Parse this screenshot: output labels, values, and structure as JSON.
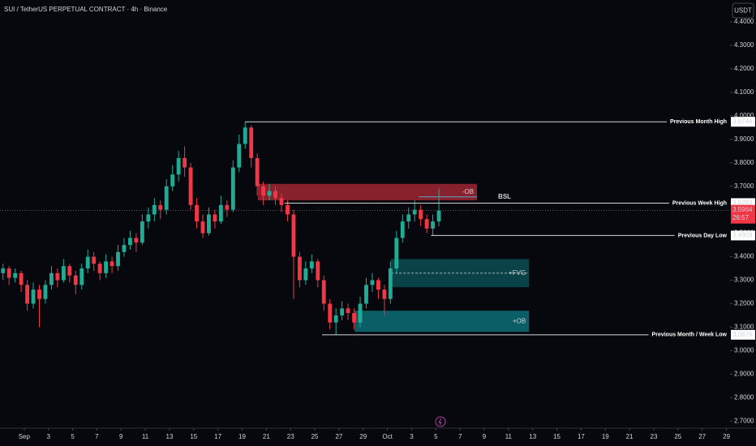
{
  "chart_data": {
    "type": "candlestick",
    "title": "SUI / TetherUS PERPETUAL CONTRACT · 4h · Binance",
    "currency": "USDT",
    "countdown": "26:57",
    "up_color": "#22ab94",
    "down_color": "#f23645",
    "xlim": [
      -2.0,
      58.3
    ],
    "xticks": [
      {
        "value": 0,
        "label": "Sep"
      },
      {
        "value": 2,
        "label": "3"
      },
      {
        "value": 4,
        "label": "5"
      },
      {
        "value": 6,
        "label": "7"
      },
      {
        "value": 8,
        "label": "9"
      },
      {
        "value": 10,
        "label": "11"
      },
      {
        "value": 12,
        "label": "13"
      },
      {
        "value": 14,
        "label": "15"
      },
      {
        "value": 16,
        "label": "17"
      },
      {
        "value": 18,
        "label": "19"
      },
      {
        "value": 20,
        "label": "21"
      },
      {
        "value": 22,
        "label": "23"
      },
      {
        "value": 24,
        "label": "25"
      },
      {
        "value": 26,
        "label": "27"
      },
      {
        "value": 28,
        "label": "29"
      },
      {
        "value": 30,
        "label": "Oct"
      },
      {
        "value": 32,
        "label": "3"
      },
      {
        "value": 34,
        "label": "5"
      },
      {
        "value": 36,
        "label": "7"
      },
      {
        "value": 38,
        "label": "9"
      },
      {
        "value": 40,
        "label": "11"
      },
      {
        "value": 42,
        "label": "13"
      },
      {
        "value": 44,
        "label": "15"
      },
      {
        "value": 46,
        "label": "17"
      },
      {
        "value": 48,
        "label": "19"
      },
      {
        "value": 50,
        "label": "21"
      },
      {
        "value": 52,
        "label": "23"
      },
      {
        "value": 54,
        "label": "25"
      },
      {
        "value": 56,
        "label": "27"
      },
      {
        "value": 58,
        "label": "29"
      }
    ],
    "ylim": [
      2.67,
      4.493
    ],
    "yticks": [
      {
        "value": 4.4,
        "label": "4.4000"
      },
      {
        "value": 4.3,
        "label": "4.3000"
      },
      {
        "value": 4.2,
        "label": "4.2000"
      },
      {
        "value": 4.1,
        "label": "4.1000"
      },
      {
        "value": 4.0,
        "label": "4.0000"
      },
      {
        "value": 3.9,
        "label": "3.9000"
      },
      {
        "value": 3.8,
        "label": "3.8000"
      },
      {
        "value": 3.7,
        "label": "3.7000"
      },
      {
        "value": 3.6,
        "label": "3.6000"
      },
      {
        "value": 3.5,
        "label": "3.5000"
      },
      {
        "value": 3.4,
        "label": "3.4000"
      },
      {
        "value": 3.3,
        "label": "3.3000"
      },
      {
        "value": 3.2,
        "label": "3.2000"
      },
      {
        "value": 3.1,
        "label": "3.1000"
      },
      {
        "value": 3.0,
        "label": "3.0000"
      },
      {
        "value": 2.9,
        "label": "2.9000"
      },
      {
        "value": 2.8,
        "label": "2.8000"
      },
      {
        "value": 2.7,
        "label": "2.7000"
      }
    ],
    "x": [
      -1.75,
      -1.25,
      -0.75,
      -0.25,
      0.25,
      0.75,
      1.25,
      1.75,
      2.25,
      2.75,
      3.25,
      3.75,
      4.25,
      4.75,
      5.25,
      5.75,
      6.25,
      6.75,
      7.25,
      7.75,
      8.25,
      8.75,
      9.25,
      9.75,
      10.25,
      10.75,
      11.25,
      11.75,
      12.25,
      12.75,
      13.25,
      13.75,
      14.25,
      14.75,
      15.25,
      15.75,
      16.25,
      16.75,
      17.25,
      17.75,
      18.25,
      18.75,
      19.25,
      19.75,
      20.25,
      20.75,
      21.25,
      21.75,
      22.25,
      22.75,
      23.25,
      23.75,
      24.25,
      24.75,
      25.25,
      25.75,
      26.25,
      26.75,
      27.25,
      27.75,
      28.25,
      28.75,
      29.25,
      29.75,
      30.25,
      30.75,
      31.25,
      31.75,
      32.25,
      32.75,
      33.25,
      33.75,
      34.25
    ],
    "open": [
      3.33,
      3.35,
      3.31,
      3.33,
      3.28,
      3.2,
      3.26,
      3.22,
      3.28,
      3.33,
      3.3,
      3.36,
      3.32,
      3.28,
      3.35,
      3.4,
      3.37,
      3.33,
      3.38,
      3.36,
      3.42,
      3.45,
      3.48,
      3.46,
      3.55,
      3.58,
      3.62,
      3.6,
      3.7,
      3.75,
      3.82,
      3.78,
      3.62,
      3.55,
      3.5,
      3.58,
      3.55,
      3.62,
      3.6,
      3.78,
      3.88,
      3.95,
      3.82,
      3.7,
      3.66,
      3.68,
      3.65,
      3.62,
      3.58,
      3.4,
      3.3,
      3.35,
      3.38,
      3.3,
      3.2,
      3.12,
      3.15,
      3.18,
      3.16,
      3.12,
      3.2,
      3.28,
      3.3,
      3.26,
      3.22,
      3.35,
      3.48,
      3.55,
      3.58,
      3.6,
      3.56,
      3.52,
      3.55
    ],
    "high": [
      3.37,
      3.36,
      3.35,
      3.34,
      3.3,
      3.29,
      3.28,
      3.3,
      3.36,
      3.35,
      3.39,
      3.37,
      3.34,
      3.37,
      3.43,
      3.42,
      3.38,
      3.41,
      3.4,
      3.45,
      3.48,
      3.51,
      3.5,
      3.58,
      3.61,
      3.65,
      3.64,
      3.73,
      3.79,
      3.85,
      3.87,
      3.8,
      3.65,
      3.58,
      3.61,
      3.6,
      3.66,
      3.64,
      3.81,
      3.92,
      3.9744,
      3.96,
      3.84,
      3.72,
      3.71,
      3.7,
      3.67,
      3.64,
      3.6,
      3.42,
      3.38,
      3.41,
      3.39,
      3.32,
      3.22,
      3.18,
      3.21,
      3.2,
      3.18,
      3.23,
      3.31,
      3.33,
      3.31,
      3.28,
      3.38,
      3.51,
      3.58,
      3.61,
      3.64,
      3.62,
      3.58,
      3.58,
      3.69
    ],
    "low": [
      3.3,
      3.28,
      3.29,
      3.25,
      3.17,
      3.18,
      3.1,
      3.2,
      3.26,
      3.27,
      3.29,
      3.29,
      3.24,
      3.26,
      3.33,
      3.34,
      3.3,
      3.31,
      3.33,
      3.34,
      3.4,
      3.43,
      3.42,
      3.45,
      3.52,
      3.55,
      3.56,
      3.58,
      3.68,
      3.72,
      3.74,
      3.6,
      3.52,
      3.48,
      3.49,
      3.52,
      3.54,
      3.57,
      3.59,
      3.76,
      3.86,
      3.78,
      3.66,
      3.62,
      3.64,
      3.62,
      3.59,
      3.55,
      3.22,
      3.27,
      3.28,
      3.33,
      3.27,
      3.17,
      3.09,
      3.0676,
      3.13,
      3.13,
      3.09,
      3.1,
      3.18,
      3.25,
      3.22,
      3.15,
      3.2,
      3.33,
      3.46,
      3.52,
      3.55,
      3.53,
      3.5,
      3.4903,
      3.53
    ],
    "close": [
      3.35,
      3.31,
      3.33,
      3.28,
      3.2,
      3.26,
      3.22,
      3.28,
      3.33,
      3.3,
      3.36,
      3.32,
      3.28,
      3.35,
      3.4,
      3.37,
      3.33,
      3.38,
      3.36,
      3.42,
      3.45,
      3.48,
      3.46,
      3.55,
      3.58,
      3.62,
      3.6,
      3.7,
      3.75,
      3.82,
      3.78,
      3.62,
      3.55,
      3.5,
      3.58,
      3.55,
      3.62,
      3.6,
      3.78,
      3.88,
      3.95,
      3.82,
      3.7,
      3.66,
      3.68,
      3.65,
      3.62,
      3.58,
      3.4,
      3.3,
      3.35,
      3.38,
      3.3,
      3.2,
      3.12,
      3.15,
      3.18,
      3.16,
      3.12,
      3.2,
      3.28,
      3.3,
      3.26,
      3.22,
      3.35,
      3.48,
      3.55,
      3.58,
      3.6,
      3.56,
      3.52,
      3.55,
      3.5964
    ],
    "levels": [
      {
        "label": "Previous Month High",
        "value": 3.9744,
        "start": 18.25
      },
      {
        "label": "Previous Week High",
        "value": 3.6283,
        "start": 21.5
      },
      {
        "label": "Previous Day Low",
        "value": 3.4903,
        "start": 33.6
      },
      {
        "label": "Previous Month / Week Low",
        "value": 3.0676,
        "start": 24.6
      }
    ],
    "zones": [
      {
        "label": "-OB",
        "low": 3.64,
        "high": 3.71,
        "start": 19.3,
        "end": 37.4,
        "color": "#f23645"
      },
      {
        "label": "+FVG",
        "low": 3.27,
        "high": 3.39,
        "start": 30.3,
        "end": 41.7,
        "color": "#0e8a8f"
      },
      {
        "label": "+OB",
        "low": 3.08,
        "high": 3.17,
        "start": 27.3,
        "end": 41.7,
        "color": "#13a6b0"
      }
    ],
    "bsl": {
      "label": "BSL",
      "value": 3.655,
      "start": 32.6,
      "end": 37.4
    }
  }
}
